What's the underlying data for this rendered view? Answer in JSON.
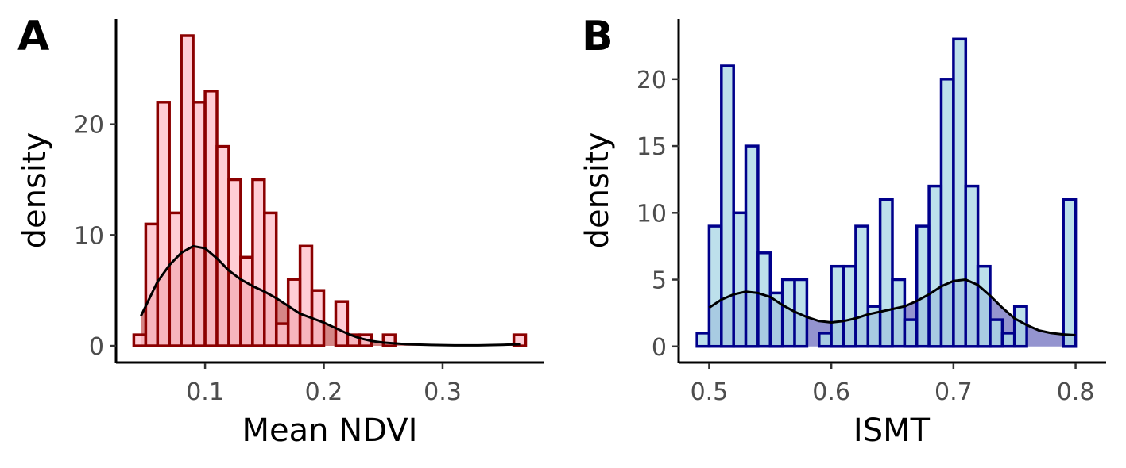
{
  "colors": {
    "a_bar_fill": "#ffc0cb",
    "a_bar_stroke": "#8b0000",
    "a_density_fill": "#b22222",
    "b_bar_fill": "#add8e6",
    "b_bar_stroke": "#00008b",
    "b_density_fill": "#3c3ca8",
    "density_line": "#000000"
  },
  "chart_data": [
    {
      "type": "bar",
      "subtype": "histogram_with_density",
      "panel_tag": "A",
      "xlabel": "Mean NDVI",
      "ylabel": "density",
      "xlim": [
        0.025,
        0.385
      ],
      "ylim": [
        -1.5,
        29.5
      ],
      "xticks": [
        0.1,
        0.2,
        0.3
      ],
      "xtick_labels": [
        "0.1",
        "0.2",
        "0.3"
      ],
      "yticks": [
        0,
        10,
        20
      ],
      "ytick_labels": [
        "0",
        "10",
        "20"
      ],
      "bin_width": 0.01,
      "bins": [
        {
          "x0": 0.04,
          "x1": 0.05,
          "value": 1
        },
        {
          "x0": 0.05,
          "x1": 0.06,
          "value": 11
        },
        {
          "x0": 0.06,
          "x1": 0.07,
          "value": 22
        },
        {
          "x0": 0.07,
          "x1": 0.08,
          "value": 12
        },
        {
          "x0": 0.08,
          "x1": 0.09,
          "value": 28
        },
        {
          "x0": 0.09,
          "x1": 0.1,
          "value": 22
        },
        {
          "x0": 0.1,
          "x1": 0.11,
          "value": 23
        },
        {
          "x0": 0.11,
          "x1": 0.12,
          "value": 18
        },
        {
          "x0": 0.12,
          "x1": 0.13,
          "value": 15
        },
        {
          "x0": 0.13,
          "x1": 0.14,
          "value": 8
        },
        {
          "x0": 0.14,
          "x1": 0.15,
          "value": 15
        },
        {
          "x0": 0.15,
          "x1": 0.16,
          "value": 12
        },
        {
          "x0": 0.16,
          "x1": 0.17,
          "value": 2
        },
        {
          "x0": 0.17,
          "x1": 0.18,
          "value": 6
        },
        {
          "x0": 0.18,
          "x1": 0.19,
          "value": 9
        },
        {
          "x0": 0.19,
          "x1": 0.2,
          "value": 5
        },
        {
          "x0": 0.2,
          "x1": 0.21,
          "value": 0
        },
        {
          "x0": 0.21,
          "x1": 0.22,
          "value": 4
        },
        {
          "x0": 0.22,
          "x1": 0.23,
          "value": 1
        },
        {
          "x0": 0.23,
          "x1": 0.24,
          "value": 1
        },
        {
          "x0": 0.25,
          "x1": 0.26,
          "value": 1
        },
        {
          "x0": 0.36,
          "x1": 0.37,
          "value": 1
        }
      ],
      "density": {
        "x": [
          0.046,
          0.05,
          0.06,
          0.07,
          0.08,
          0.09,
          0.1,
          0.11,
          0.12,
          0.13,
          0.14,
          0.15,
          0.16,
          0.17,
          0.18,
          0.19,
          0.2,
          0.21,
          0.22,
          0.23,
          0.24,
          0.25,
          0.27,
          0.29,
          0.31,
          0.33,
          0.35,
          0.366
        ],
        "y": [
          2.7,
          3.6,
          5.8,
          7.3,
          8.4,
          9.0,
          8.8,
          7.9,
          6.8,
          6.0,
          5.4,
          4.9,
          4.3,
          3.6,
          2.9,
          2.5,
          2.1,
          1.6,
          1.1,
          0.7,
          0.45,
          0.3,
          0.15,
          0.08,
          0.05,
          0.05,
          0.1,
          0.15
        ]
      }
    },
    {
      "type": "bar",
      "subtype": "histogram_with_density",
      "panel_tag": "B",
      "xlabel": "ISMT",
      "ylabel": "density",
      "xlim": [
        0.475,
        0.825
      ],
      "ylim": [
        -1.2,
        24.5
      ],
      "xticks": [
        0.5,
        0.6,
        0.7,
        0.8
      ],
      "xtick_labels": [
        "0.5",
        "0.6",
        "0.7",
        "0.8"
      ],
      "yticks": [
        0,
        5,
        10,
        15,
        20
      ],
      "ytick_labels": [
        "0",
        "5",
        "10",
        "15",
        "20"
      ],
      "bin_width": 0.01,
      "bins": [
        {
          "x0": 0.49,
          "x1": 0.5,
          "value": 1
        },
        {
          "x0": 0.5,
          "x1": 0.51,
          "value": 9
        },
        {
          "x0": 0.51,
          "x1": 0.52,
          "value": 21
        },
        {
          "x0": 0.52,
          "x1": 0.53,
          "value": 10
        },
        {
          "x0": 0.53,
          "x1": 0.54,
          "value": 15
        },
        {
          "x0": 0.54,
          "x1": 0.55,
          "value": 7
        },
        {
          "x0": 0.55,
          "x1": 0.56,
          "value": 4
        },
        {
          "x0": 0.56,
          "x1": 0.57,
          "value": 5
        },
        {
          "x0": 0.57,
          "x1": 0.58,
          "value": 5
        },
        {
          "x0": 0.59,
          "x1": 0.6,
          "value": 1
        },
        {
          "x0": 0.6,
          "x1": 0.61,
          "value": 6
        },
        {
          "x0": 0.61,
          "x1": 0.62,
          "value": 6
        },
        {
          "x0": 0.62,
          "x1": 0.63,
          "value": 9
        },
        {
          "x0": 0.63,
          "x1": 0.64,
          "value": 3
        },
        {
          "x0": 0.64,
          "x1": 0.65,
          "value": 11
        },
        {
          "x0": 0.65,
          "x1": 0.66,
          "value": 5
        },
        {
          "x0": 0.66,
          "x1": 0.67,
          "value": 2
        },
        {
          "x0": 0.67,
          "x1": 0.68,
          "value": 9
        },
        {
          "x0": 0.68,
          "x1": 0.69,
          "value": 12
        },
        {
          "x0": 0.69,
          "x1": 0.7,
          "value": 20
        },
        {
          "x0": 0.7,
          "x1": 0.71,
          "value": 23
        },
        {
          "x0": 0.71,
          "x1": 0.72,
          "value": 12
        },
        {
          "x0": 0.72,
          "x1": 0.73,
          "value": 6
        },
        {
          "x0": 0.73,
          "x1": 0.74,
          "value": 2
        },
        {
          "x0": 0.74,
          "x1": 0.75,
          "value": 1
        },
        {
          "x0": 0.75,
          "x1": 0.76,
          "value": 3
        },
        {
          "x0": 0.79,
          "x1": 0.8,
          "value": 11
        }
      ],
      "density": {
        "x": [
          0.5,
          0.51,
          0.52,
          0.53,
          0.54,
          0.55,
          0.56,
          0.57,
          0.58,
          0.59,
          0.6,
          0.61,
          0.62,
          0.63,
          0.64,
          0.65,
          0.66,
          0.67,
          0.68,
          0.69,
          0.7,
          0.71,
          0.72,
          0.73,
          0.74,
          0.75,
          0.76,
          0.77,
          0.78,
          0.79,
          0.8
        ],
        "y": [
          2.9,
          3.5,
          3.9,
          4.1,
          4.0,
          3.7,
          3.1,
          2.6,
          2.2,
          1.9,
          1.8,
          1.9,
          2.1,
          2.4,
          2.6,
          2.8,
          3.0,
          3.4,
          3.9,
          4.5,
          4.9,
          5.0,
          4.6,
          3.8,
          2.9,
          2.1,
          1.6,
          1.2,
          1.0,
          0.9,
          0.85
        ]
      }
    }
  ]
}
